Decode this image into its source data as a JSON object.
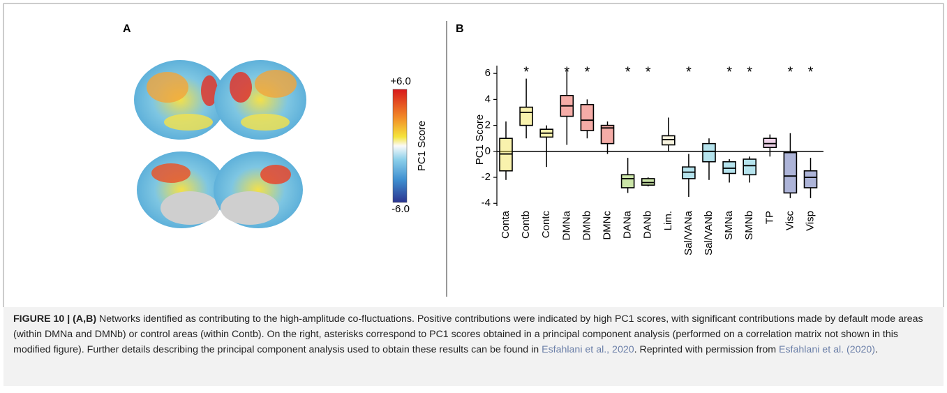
{
  "panel_a": {
    "label": "A",
    "colorbar": {
      "max_label": "+6.0",
      "min_label": "-6.0",
      "title": "PC1 Score"
    }
  },
  "chart_data": {
    "type": "box",
    "panel_label": "B",
    "y_label": "PC1 Score",
    "categories": [
      "Conta",
      "Contb",
      "Contc",
      "DMNa",
      "DMNb",
      "DMNc",
      "DANa",
      "DANb",
      "Lim.",
      "Sal/VANa",
      "Sal/VANb",
      "SMNa",
      "SMNb",
      "TP",
      "Visc",
      "Visp"
    ],
    "colors": [
      "#f2e24a",
      "#f2e24a",
      "#f2e24a",
      "#e8463c",
      "#e8463c",
      "#e8463c",
      "#8cc63f",
      "#8cc63f",
      "#efe6b8",
      "#5cc2d8",
      "#5cc2d8",
      "#5cc2d8",
      "#5cc2d8",
      "#d99ccb",
      "#4a58a8",
      "#4a58a8"
    ],
    "boxes": [
      {
        "min": -2.2,
        "q1": -1.5,
        "median": -0.2,
        "q3": 1.0,
        "max": 2.3
      },
      {
        "min": 1.0,
        "q1": 2.0,
        "median": 3.0,
        "q3": 3.4,
        "max": 5.6
      },
      {
        "min": -1.2,
        "q1": 1.1,
        "median": 1.4,
        "q3": 1.7,
        "max": 2.0
      },
      {
        "min": 0.5,
        "q1": 2.7,
        "median": 3.5,
        "q3": 4.3,
        "max": 6.2
      },
      {
        "min": 1.0,
        "q1": 1.6,
        "median": 2.4,
        "q3": 3.6,
        "max": 4.0
      },
      {
        "min": -0.2,
        "q1": 0.6,
        "median": 1.8,
        "q3": 2.0,
        "max": 2.3
      },
      {
        "min": -3.2,
        "q1": -2.8,
        "median": -2.1,
        "q3": -1.8,
        "max": -0.5
      },
      {
        "min": -2.7,
        "q1": -2.6,
        "median": -2.4,
        "q3": -2.1,
        "max": -2.0
      },
      {
        "min": 0.0,
        "q1": 0.5,
        "median": 0.9,
        "q3": 1.2,
        "max": 2.6
      },
      {
        "min": -3.5,
        "q1": -2.1,
        "median": -1.6,
        "q3": -1.2,
        "max": -0.2
      },
      {
        "min": -2.2,
        "q1": -0.8,
        "median": 0.0,
        "q3": 0.6,
        "max": 1.0
      },
      {
        "min": -2.4,
        "q1": -1.7,
        "median": -1.3,
        "q3": -0.8,
        "max": -0.6
      },
      {
        "min": -2.4,
        "q1": -1.8,
        "median": -1.1,
        "q3": -0.6,
        "max": -0.4
      },
      {
        "min": -0.4,
        "q1": 0.3,
        "median": 0.6,
        "q3": 1.0,
        "max": 1.3
      },
      {
        "min": -3.6,
        "q1": -3.2,
        "median": -1.9,
        "q3": -0.1,
        "max": 1.4
      },
      {
        "min": -3.6,
        "q1": -2.8,
        "median": -2.0,
        "q3": -1.5,
        "max": -0.5
      }
    ],
    "significance_marker": "*",
    "significant": [
      false,
      true,
      false,
      true,
      true,
      false,
      true,
      true,
      false,
      true,
      false,
      true,
      true,
      false,
      true,
      true
    ],
    "ylim": [
      -4.2,
      6.6
    ],
    "yticks": [
      -4,
      -2,
      0,
      2,
      4,
      6
    ]
  },
  "caption": {
    "label": "FIGURE 10 | (A,B)",
    "text_1": " Networks identified as contributing to the high-amplitude co-fluctuations. Positive contributions were indicated by high PC1 scores, with significant contributions made by default mode areas (within DMNa and DMNb) or control areas (within Contb). On the right, asterisks correspond to PC1 scores obtained in a principal component analysis (performed on a correlation matrix not shown in this modified figure). Further details describing the principal component analysis used to obtain these results can be found in ",
    "link_1": "Esfahlani et al., 2020",
    "text_2": ". Reprinted with permission from ",
    "link_2": "Esfahlani et al. (2020)",
    "text_3": "."
  }
}
